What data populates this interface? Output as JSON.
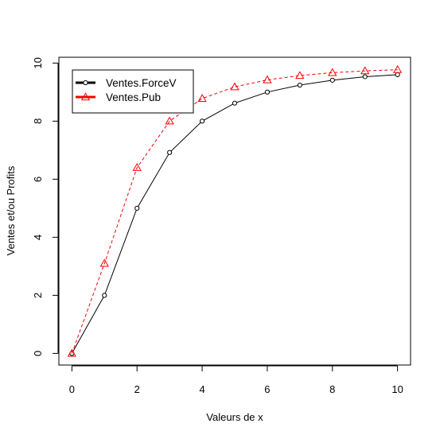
{
  "chart_data": {
    "type": "line",
    "title": "",
    "xlabel": "Valeurs de x",
    "ylabel": "Ventes et/ou Profits",
    "xlim": [
      -0.4,
      10.4
    ],
    "ylim": [
      -0.4,
      10.2
    ],
    "x_ticks": [
      0,
      2,
      4,
      6,
      8,
      10
    ],
    "y_ticks": [
      0,
      2,
      4,
      6,
      8,
      10
    ],
    "x": [
      0,
      1,
      2,
      3,
      4,
      5,
      6,
      7,
      8,
      9,
      10
    ],
    "grid": false,
    "legend_position": "top-left",
    "series": [
      {
        "name": "Ventes.ForceV",
        "values": [
          0,
          2.0,
          5.0,
          6.92,
          8.0,
          8.62,
          9.0,
          9.24,
          9.41,
          9.53,
          9.6
        ],
        "color": "#000000",
        "line_style": "solid",
        "marker": "circle"
      },
      {
        "name": "Ventes.Pub",
        "values": [
          0,
          3.1,
          6.4,
          8.0,
          8.78,
          9.18,
          9.42,
          9.57,
          9.67,
          9.73,
          9.77
        ],
        "color": "#ff0000",
        "line_style": "dashed",
        "marker": "triangle"
      }
    ]
  }
}
